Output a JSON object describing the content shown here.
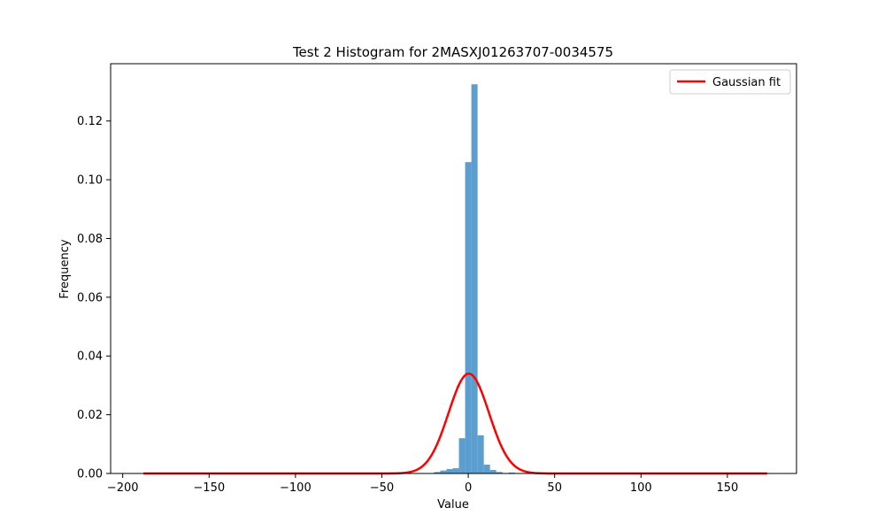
{
  "chart_data": {
    "type": "bar",
    "title": "Test 2 Histogram for 2MASXJ01263707-0034575",
    "xlabel": "Value",
    "ylabel": "Frequency",
    "xlim": [
      -207,
      190
    ],
    "ylim": [
      0,
      0.1395
    ],
    "xticks": [
      -200,
      -150,
      -100,
      -50,
      0,
      50,
      100,
      150
    ],
    "yticks": [
      0.0,
      0.02,
      0.04,
      0.06,
      0.08,
      0.1,
      0.12
    ],
    "ytick_labels": [
      "0.00",
      "0.02",
      "0.04",
      "0.06",
      "0.08",
      "0.10",
      "0.12"
    ],
    "grid": false,
    "legend": {
      "placement": "top-right",
      "entries": [
        "Gaussian fit"
      ]
    },
    "colors": {
      "bars": "#5b9ecf",
      "fit": "#ff0000"
    },
    "bar_width": 3.6,
    "bars": [
      {
        "x": -18,
        "y": 0.0005
      },
      {
        "x": -14.4,
        "y": 0.001
      },
      {
        "x": -10.8,
        "y": 0.0015
      },
      {
        "x": -7.2,
        "y": 0.0018
      },
      {
        "x": -3.6,
        "y": 0.012
      },
      {
        "x": 0,
        "y": 0.106
      },
      {
        "x": 3.6,
        "y": 0.1325
      },
      {
        "x": 7.2,
        "y": 0.013
      },
      {
        "x": 10.8,
        "y": 0.003
      },
      {
        "x": 14.4,
        "y": 0.0012
      },
      {
        "x": 18,
        "y": 0.0005
      },
      {
        "x": 25.2,
        "y": 0.0003
      }
    ],
    "series": [
      {
        "name": "Gaussian fit",
        "type": "gaussian",
        "mu": 0.3,
        "sigma": 11.7,
        "amplitude": 0.034,
        "x_range": [
          -188,
          173
        ]
      }
    ]
  }
}
